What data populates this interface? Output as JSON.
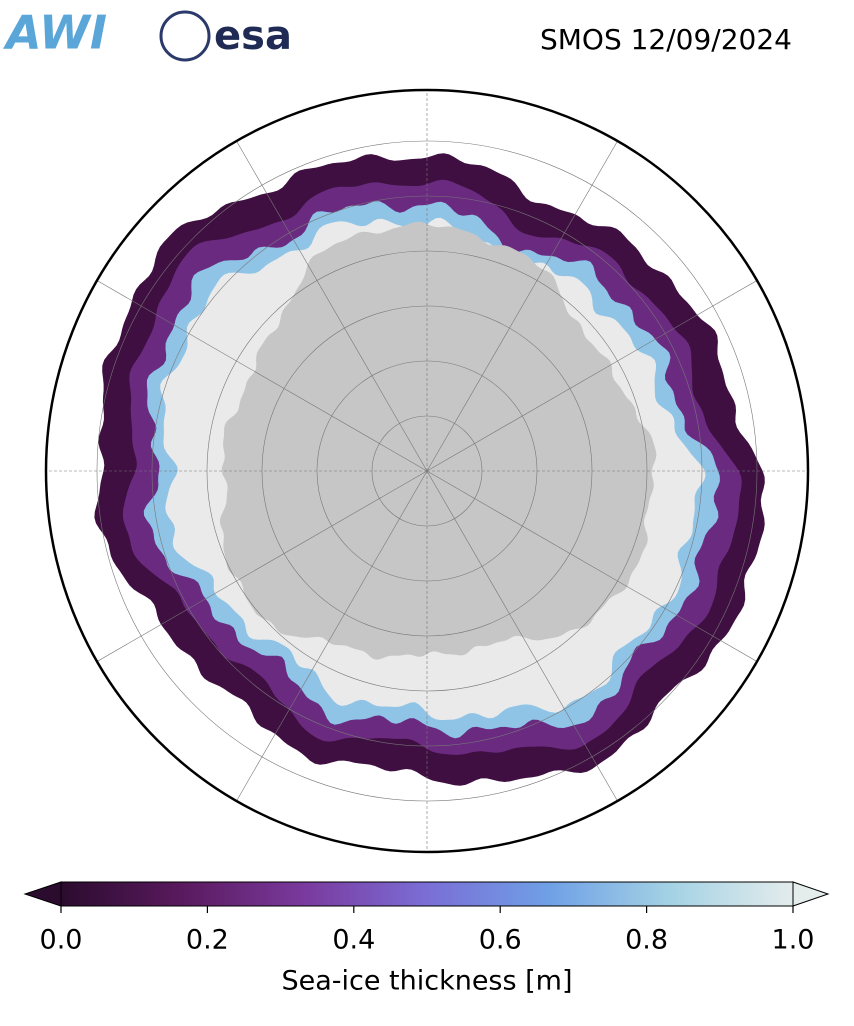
{
  "header": {
    "logos": [
      "AWI",
      "esa"
    ],
    "title": "SMOS 12/09/2024"
  },
  "colorbar": {
    "label": "Sea-ice thickness [m]",
    "lim": [
      0,
      1
    ],
    "ticks": [
      {
        "value": 0,
        "label": "0.0"
      },
      {
        "value": 0.2,
        "label": "0.2"
      },
      {
        "value": 0.4,
        "label": "0.4"
      },
      {
        "value": 0.6,
        "label": "0.6"
      },
      {
        "value": 0.8,
        "label": "0.8"
      },
      {
        "value": 1,
        "label": "1.0"
      }
    ],
    "colormap": [
      "#2b0b2e",
      "#5a1a5e",
      "#7a3a9e",
      "#7a6ed6",
      "#6fa0e6",
      "#a4d2e4",
      "#e4ecec"
    ]
  }
}
